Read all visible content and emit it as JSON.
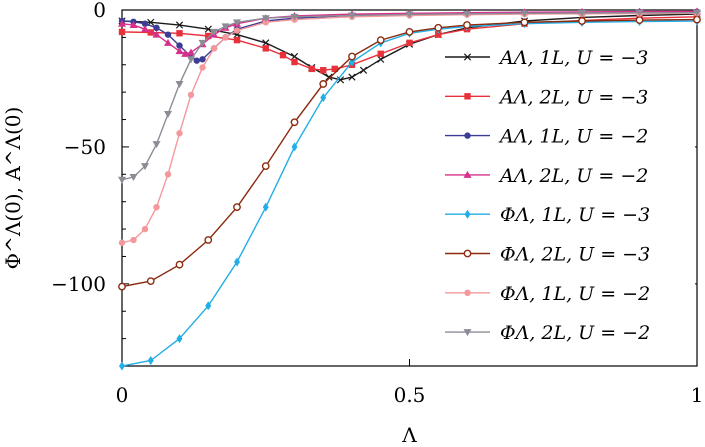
{
  "chart_data": {
    "type": "line",
    "title": "",
    "xlabel": "Λ",
    "ylabel": "Φ^Λ(0), A^Λ(0)",
    "xlim": [
      0,
      1
    ],
    "ylim": [
      -130,
      0
    ],
    "xticks": [
      0,
      0.5,
      1
    ],
    "xtick_labels": [
      "0",
      "0.5",
      "1"
    ],
    "yticks": [
      0,
      -50,
      -100
    ],
    "ytick_labels": [
      "0",
      "−50",
      "−100"
    ],
    "grid": false,
    "legend_position": "right",
    "series": [
      {
        "name": "A^Λ, 1L, U = −3",
        "label": "AΛ, 1L, U = −3",
        "color": "#1a1a1a",
        "marker": "x",
        "x": [
          0,
          0.05,
          0.1,
          0.15,
          0.2,
          0.25,
          0.3,
          0.33,
          0.36,
          0.38,
          0.4,
          0.42,
          0.45,
          0.5,
          0.55,
          0.6,
          0.7,
          0.8,
          0.9,
          1.0
        ],
        "y": [
          -4,
          -4.5,
          -5.5,
          -7,
          -9,
          -12,
          -17,
          -21,
          -24.5,
          -25.5,
          -24.5,
          -22,
          -18,
          -12.5,
          -9,
          -6.5,
          -4,
          -2.7,
          -2,
          -1.5
        ]
      },
      {
        "name": "A^Λ, 2L, U = −3",
        "label": "AΛ, 2L, U = −3",
        "color": "#e8323b",
        "marker": "square",
        "x": [
          0,
          0.05,
          0.1,
          0.15,
          0.2,
          0.25,
          0.28,
          0.3,
          0.33,
          0.35,
          0.37,
          0.4,
          0.45,
          0.5,
          0.55,
          0.6,
          0.7,
          0.8,
          0.9,
          1.0
        ],
        "y": [
          -8,
          -8.2,
          -8.5,
          -9.5,
          -11,
          -14,
          -16.5,
          -19,
          -21.5,
          -22,
          -21.5,
          -20,
          -16,
          -12,
          -9,
          -7,
          -5,
          -3.8,
          -3,
          -2.5
        ]
      },
      {
        "name": "A^Λ, 1L, U = −2",
        "label": "AΛ, 1L, U = −2",
        "color": "#3c3c96",
        "marker": "circle",
        "x": [
          0,
          0.02,
          0.04,
          0.06,
          0.08,
          0.1,
          0.12,
          0.13,
          0.14,
          0.16,
          0.18,
          0.2,
          0.25,
          0.3,
          0.4,
          0.5,
          0.6,
          0.7,
          0.8,
          0.9,
          1.0
        ],
        "y": [
          -4,
          -4.3,
          -5,
          -6.5,
          -9,
          -13,
          -17,
          -18.5,
          -18,
          -14,
          -10,
          -7,
          -4,
          -3,
          -2,
          -1.5,
          -1.2,
          -1,
          -0.8,
          -0.7,
          -0.6
        ]
      },
      {
        "name": "A^Λ, 2L, U = −2",
        "label": "AΛ, 2L, U = −2",
        "color": "#d6308c",
        "marker": "triangle-up",
        "x": [
          0,
          0.02,
          0.04,
          0.06,
          0.08,
          0.1,
          0.11,
          0.12,
          0.14,
          0.16,
          0.18,
          0.2,
          0.25,
          0.3,
          0.4,
          0.5,
          0.6,
          0.7,
          0.8,
          0.9,
          1.0
        ],
        "y": [
          -5,
          -5.5,
          -7,
          -9,
          -12,
          -15,
          -16,
          -15.5,
          -12.5,
          -9,
          -6.5,
          -5,
          -3,
          -2.2,
          -1.5,
          -1.2,
          -1,
          -0.8,
          -0.7,
          -0.6,
          -0.5
        ]
      },
      {
        "name": "Φ^Λ, 1L, U = −3",
        "label": "ΦΛ, 1L, U = −3",
        "color": "#22aee6",
        "marker": "diamond",
        "x": [
          0,
          0.05,
          0.1,
          0.15,
          0.2,
          0.25,
          0.3,
          0.35,
          0.4,
          0.45,
          0.5,
          0.55,
          0.6,
          0.7,
          0.8,
          0.9,
          1.0
        ],
        "y": [
          -130,
          -128,
          -120,
          -108,
          -92,
          -72,
          -50,
          -32,
          -19,
          -12,
          -8.5,
          -7,
          -6,
          -5,
          -4.5,
          -4.2,
          -4
        ]
      },
      {
        "name": "Φ^Λ, 2L, U = −3",
        "label": "ΦΛ, 2L, U = −3",
        "color": "#8b2a0e",
        "marker": "circle-open",
        "x": [
          0,
          0.05,
          0.1,
          0.15,
          0.2,
          0.25,
          0.3,
          0.35,
          0.4,
          0.45,
          0.5,
          0.55,
          0.6,
          0.7,
          0.8,
          0.9,
          1.0
        ],
        "y": [
          -101,
          -99,
          -93,
          -84,
          -72,
          -57,
          -41,
          -27,
          -17,
          -11,
          -8,
          -6.5,
          -5.5,
          -4.5,
          -4,
          -3.7,
          -3.5
        ]
      },
      {
        "name": "Φ^Λ, 1L, U = −2",
        "label": "ΦΛ, 1L, U = −2",
        "color": "#f4999b",
        "marker": "circle",
        "x": [
          0,
          0.02,
          0.04,
          0.06,
          0.08,
          0.1,
          0.12,
          0.14,
          0.16,
          0.18,
          0.2,
          0.25,
          0.3,
          0.4,
          0.5,
          0.6,
          0.7,
          0.8,
          0.9,
          1.0
        ],
        "y": [
          -85,
          -84,
          -80,
          -72,
          -60,
          -45,
          -31,
          -21,
          -14,
          -10,
          -7.5,
          -4.5,
          -3.5,
          -2.5,
          -2,
          -1.7,
          -1.5,
          -1.4,
          -1.3,
          -1.2
        ]
      },
      {
        "name": "Φ^Λ, 2L, U = −2",
        "label": "ΦΛ, 2L, U = −2",
        "color": "#8c8c96",
        "marker": "triangle-down",
        "x": [
          0,
          0.02,
          0.04,
          0.06,
          0.08,
          0.1,
          0.12,
          0.14,
          0.16,
          0.18,
          0.2,
          0.25,
          0.3,
          0.4,
          0.5,
          0.6,
          0.7,
          0.8,
          0.9,
          1.0
        ],
        "y": [
          -62,
          -61,
          -57,
          -49,
          -38,
          -27,
          -18,
          -12,
          -8,
          -6,
          -4.5,
          -3,
          -2.5,
          -2,
          -1.6,
          -1.4,
          -1.2,
          -1.1,
          -1,
          -1
        ]
      }
    ]
  }
}
